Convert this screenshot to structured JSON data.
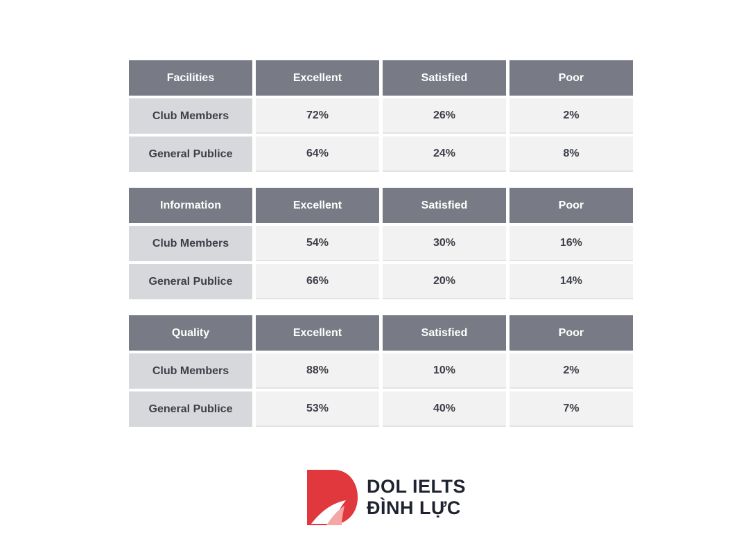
{
  "chart_data": {
    "type": "table",
    "columns": [
      "Excellent",
      "Satisfied",
      "Poor"
    ],
    "row_labels": [
      "Club Members",
      "General Publice"
    ],
    "tables": [
      {
        "category": "Facilities",
        "rows": [
          {
            "label": "Club Members",
            "values": [
              "72%",
              "26%",
              "2%"
            ]
          },
          {
            "label": "General Publice",
            "values": [
              "64%",
              "24%",
              "8%"
            ]
          }
        ]
      },
      {
        "category": "Information",
        "rows": [
          {
            "label": "Club Members",
            "values": [
              "54%",
              "30%",
              "16%"
            ]
          },
          {
            "label": "General Publice",
            "values": [
              "66%",
              "20%",
              "14%"
            ]
          }
        ]
      },
      {
        "category": "Quality",
        "rows": [
          {
            "label": "Club Members",
            "values": [
              "88%",
              "10%",
              "2%"
            ]
          },
          {
            "label": "General Publice",
            "values": [
              "53%",
              "40%",
              "7%"
            ]
          }
        ]
      }
    ]
  },
  "logo": {
    "line1": "DOL IELTS",
    "line2": "ĐÌNH LỰC"
  },
  "colors": {
    "header_bg": "#787b85",
    "row_label_bg": "#d7d8db",
    "cell_bg": "#f2f2f2",
    "brand_red": "#e0383c"
  }
}
